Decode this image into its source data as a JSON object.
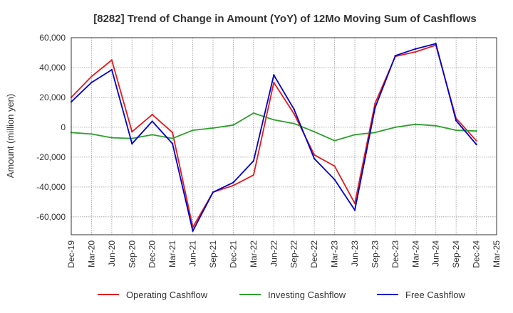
{
  "chart_data": {
    "type": "line",
    "title": "[8282]  Trend of Change in Amount (YoY) of 12Mo Moving Sum of Cashflows",
    "xlabel": "",
    "ylabel": "Amount (million yen)",
    "ylim": [
      -72000,
      60000
    ],
    "yticks": [
      60000,
      40000,
      20000,
      0,
      -20000,
      -40000,
      -60000
    ],
    "ytick_labels": [
      "60,000",
      "40,000",
      "20,000",
      "0",
      "-20,000",
      "-40,000",
      "-60,000"
    ],
    "categories": [
      "Dec-19",
      "Mar-20",
      "Jun-20",
      "Sep-20",
      "Dec-20",
      "Mar-21",
      "Jun-21",
      "Sep-21",
      "Dec-21",
      "Mar-22",
      "Jun-22",
      "Sep-22",
      "Dec-22",
      "Mar-23",
      "Jun-23",
      "Sep-23",
      "Dec-23",
      "Mar-24",
      "Jun-24",
      "Sep-24",
      "Dec-24",
      "Mar-25"
    ],
    "grid": true,
    "legend_position": "bottom",
    "series": [
      {
        "name": "Operating Cashflow",
        "color": "#e41a1c",
        "values": [
          20000,
          34000,
          45000,
          -3000,
          8500,
          -3500,
          -67000,
          -43500,
          -39000,
          -32000,
          30000,
          9000,
          -18500,
          -26000,
          -51000,
          16000,
          47500,
          50500,
          55000,
          6000,
          -9000,
          null
        ]
      },
      {
        "name": "Investing Cashflow",
        "color": "#2ca02c",
        "values": [
          -3500,
          -4500,
          -7000,
          -7500,
          -5000,
          -7500,
          -2000,
          -500,
          1500,
          9500,
          5000,
          2500,
          -3000,
          -9000,
          -5000,
          -3500,
          0,
          2000,
          1000,
          -2000,
          -2500,
          null
        ]
      },
      {
        "name": "Free Cashflow",
        "color": "#0000cc",
        "values": [
          17000,
          30000,
          38500,
          -11000,
          4000,
          -11000,
          -69500,
          -43500,
          -37000,
          -22500,
          35000,
          12000,
          -21000,
          -35000,
          -55500,
          13000,
          48000,
          52500,
          56000,
          4500,
          -11500,
          null
        ]
      }
    ]
  }
}
